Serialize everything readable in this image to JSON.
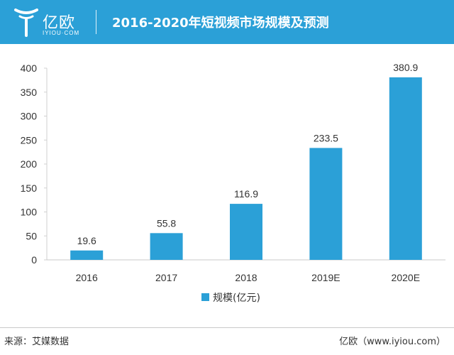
{
  "header": {
    "logo_cn": "亿欧",
    "logo_en": "IYIOU·COM",
    "title": "2016-2020年短视频市场规模及预测",
    "color": "#2ba0d7"
  },
  "chart_data": {
    "type": "bar",
    "categories": [
      "2016",
      "2017",
      "2018",
      "2019E",
      "2020E"
    ],
    "series": [
      {
        "name": "规模(亿元)",
        "values": [
          19.6,
          55.8,
          116.9,
          233.5,
          380.9
        ],
        "color": "#2ba0d7"
      }
    ],
    "data_labels": [
      "19.6",
      "55.8",
      "116.9",
      "233.5",
      "380.9"
    ],
    "y_ticks": [
      "0",
      "50",
      "100",
      "150",
      "200",
      "250",
      "300",
      "350",
      "400"
    ],
    "ylim": [
      0,
      400
    ],
    "title": "",
    "xlabel": "",
    "ylabel": "",
    "grid": false,
    "legend_position": "bottom-center"
  },
  "footer": {
    "source": "来源：艾媒数据",
    "site": "亿欧（www.iyiou.com）"
  }
}
